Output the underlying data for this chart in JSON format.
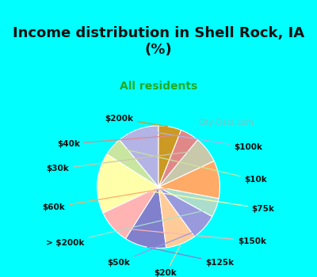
{
  "title": "Income distribution in Shell Rock, IA\n(%)",
  "subtitle": "All residents",
  "background_top": "#00FFFF",
  "background_pie": "#e8f5e9",
  "labels": [
    "$100k",
    "$10k",
    "$75k",
    "$150k",
    "$125k",
    "$20k",
    "$50k",
    "> $200k",
    "$60k",
    "$30k",
    "$40k",
    "$200k"
  ],
  "values": [
    11,
    5,
    16,
    9,
    11,
    8,
    7,
    5,
    10,
    7,
    5,
    6
  ],
  "colors": [
    "#b3b3e6",
    "#c8e6a0",
    "#ffffaa",
    "#ffb3b3",
    "#8080cc",
    "#ffcc99",
    "#9999dd",
    "#aaddcc",
    "#ffaa66",
    "#c8c8aa",
    "#e08888",
    "#cc9922"
  ],
  "startangle": 90,
  "watermark": "City-Data.com"
}
